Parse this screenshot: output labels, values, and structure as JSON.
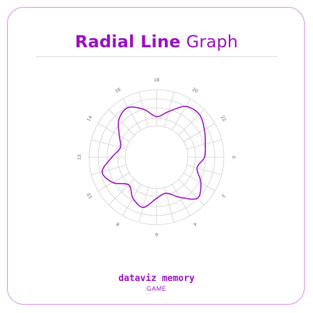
{
  "title": {
    "bold": "Radial Line",
    "light": "Graph"
  },
  "branding": {
    "name": "dataviz memory",
    "sub": "GAME"
  },
  "colors": {
    "accent": "#9a11c2",
    "border": "#d88ce8",
    "grid": "#cfcfcf"
  },
  "chart_data": {
    "type": "line",
    "polar": true,
    "angular_ticks": [
      "0",
      "2",
      "4",
      "6",
      "8",
      "10",
      "12",
      "14",
      "16",
      "18",
      "20",
      "22"
    ],
    "x": [
      0,
      1,
      2,
      3,
      4,
      5,
      6,
      7,
      8,
      9,
      10,
      11,
      12,
      13,
      14,
      15,
      16,
      17,
      18,
      19,
      20,
      21,
      22,
      23
    ],
    "values": [
      0.5,
      0.32,
      0.6,
      0.8,
      0.45,
      0.18,
      0.3,
      0.62,
      0.48,
      0.24,
      0.58,
      0.75,
      0.4,
      0.18,
      0.35,
      0.66,
      0.78,
      0.55,
      0.28,
      0.48,
      0.82,
      0.88,
      0.72,
      0.58
    ],
    "rlim": [
      0,
      1
    ],
    "grid": true
  }
}
